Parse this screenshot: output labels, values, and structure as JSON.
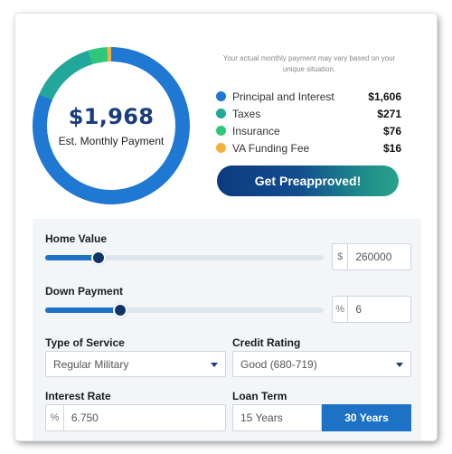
{
  "summary": {
    "amount": "$1,968",
    "label": "Est. Monthly Payment",
    "disclaimer": "Your actual monthly payment may vary based on your unique situation.",
    "items": [
      {
        "label": "Principal and Interest",
        "value": "$1,606",
        "amount": 1606,
        "color": "#1f78d1"
      },
      {
        "label": "Taxes",
        "value": "$271",
        "amount": 271,
        "color": "#21a89a"
      },
      {
        "label": "Insurance",
        "value": "$76",
        "amount": 76,
        "color": "#2ec67a"
      },
      {
        "label": "VA Funding Fee",
        "value": "$16",
        "amount": 16,
        "color": "#f3b13c"
      }
    ],
    "cta_label": "Get Preapproved!"
  },
  "form": {
    "home_value": {
      "label": "Home Value",
      "prefix": "$",
      "value": "260000",
      "slider_fraction": 0.19
    },
    "down_payment": {
      "label": "Down Payment",
      "prefix": "%",
      "value": "6",
      "slider_fraction": 0.27
    },
    "type_of_service": {
      "label": "Type of Service",
      "value": "Regular Military"
    },
    "credit_rating": {
      "label": "Credit Rating",
      "value": "Good (680-719)"
    },
    "interest_rate": {
      "label": "Interest Rate",
      "prefix": "%",
      "value": "6.750"
    },
    "loan_term": {
      "label": "Loan Term",
      "options": [
        "15 Years",
        "30 Years"
      ],
      "selected": "30 Years"
    }
  },
  "colors": {
    "accent": "#1d72c6",
    "navy": "#1a3d7c",
    "teal": "#27a38a"
  }
}
